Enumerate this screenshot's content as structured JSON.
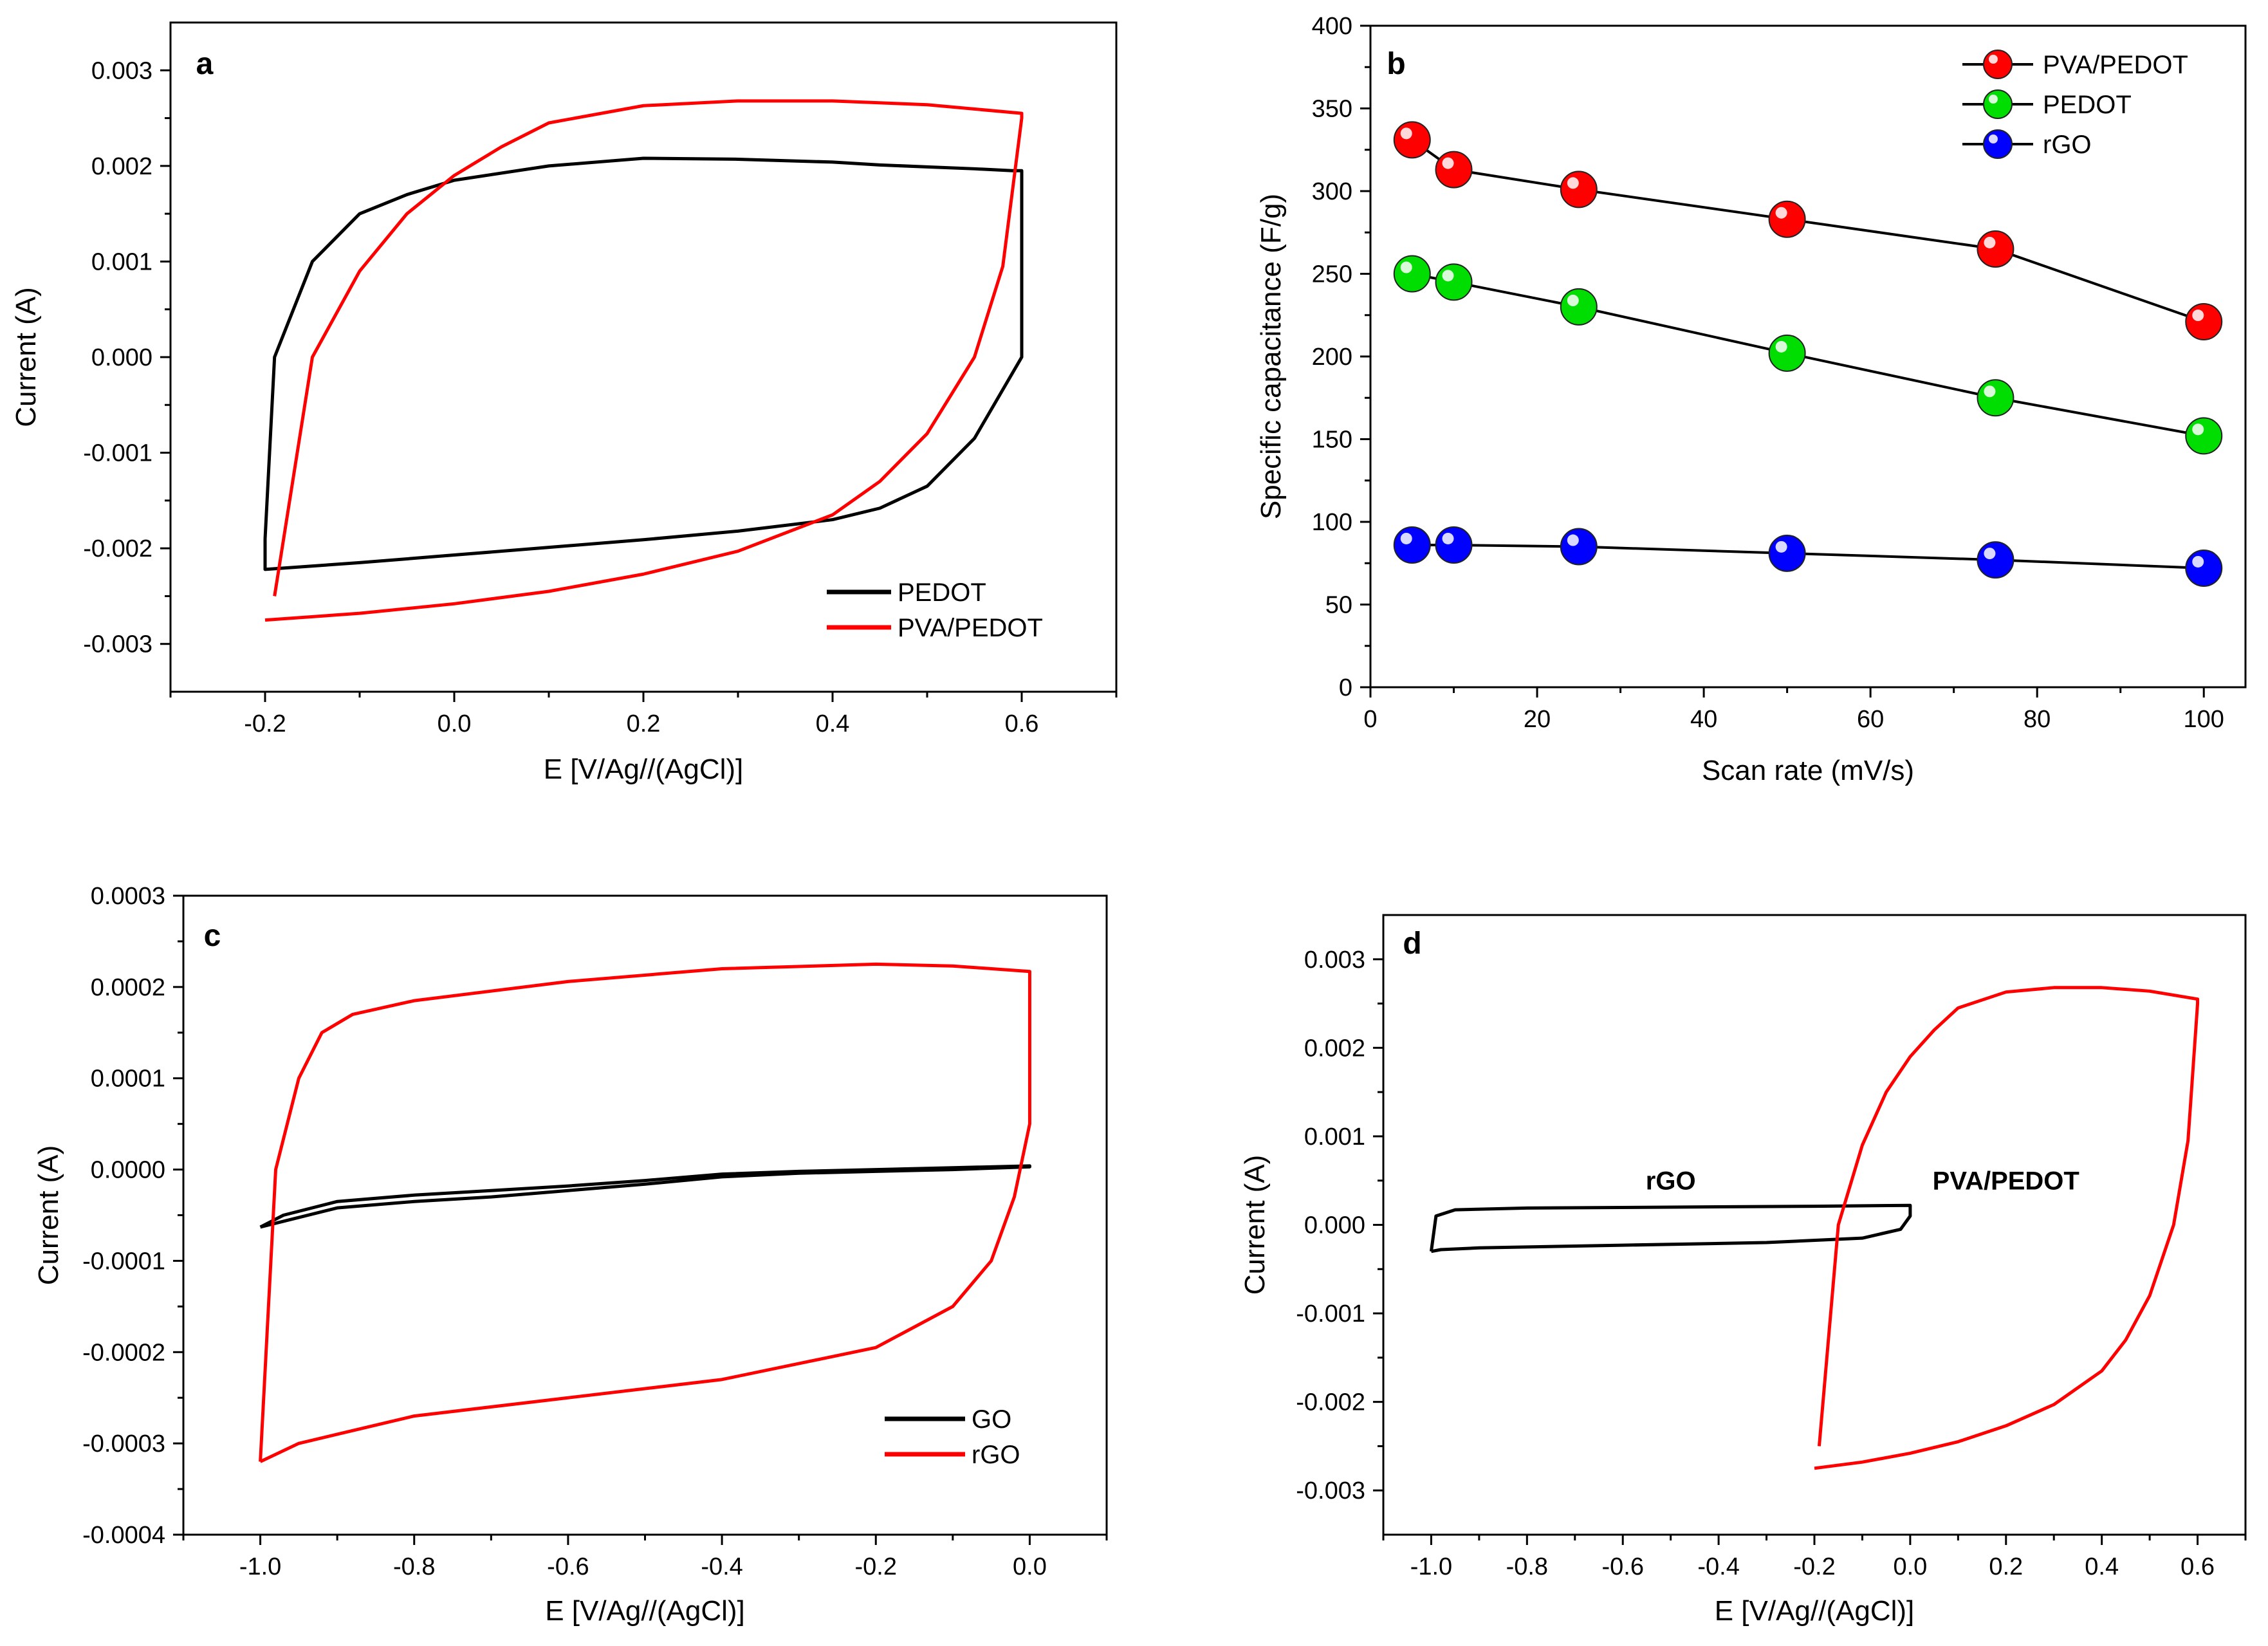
{
  "chart_data": [
    {
      "id": "a",
      "type": "line",
      "panel_label": "a",
      "xlabel": "E [V/Ag//(AgCl)]",
      "ylabel": "Current (A)",
      "xlim": [
        -0.3,
        0.7
      ],
      "ylim": [
        -0.0035,
        0.0035
      ],
      "xticks": [
        -0.2,
        0.0,
        0.2,
        0.4,
        0.6
      ],
      "xtick_labels": [
        "-0.2",
        "0.0",
        "0.2",
        "0.4",
        "0.6"
      ],
      "yticks": [
        -0.003,
        -0.002,
        -0.001,
        0.0,
        0.001,
        0.002,
        0.003
      ],
      "ytick_labels": [
        "-0.003",
        "-0.002",
        "-0.001",
        "0.000",
        "0.001",
        "0.002",
        "0.003"
      ],
      "legend_position": "bottom-right",
      "series": [
        {
          "name": "PEDOT",
          "color": "#000000",
          "x": [
            -0.2,
            -0.2,
            -0.1,
            0.0,
            0.1,
            0.2,
            0.3,
            0.4,
            0.45,
            0.5,
            0.55,
            0.6,
            0.6,
            0.59,
            0.57,
            0.55,
            0.5,
            0.45,
            0.4,
            0.3,
            0.2,
            0.1,
            0.0,
            -0.05,
            -0.1,
            -0.15,
            -0.19,
            -0.2
          ],
          "y": [
            -0.0019,
            -0.00222,
            -0.00215,
            -0.00207,
            -0.00199,
            -0.00191,
            -0.00182,
            -0.0017,
            -0.00158,
            -0.00135,
            -0.00085,
            0.0,
            0.00195,
            0.00195,
            0.00196,
            0.00197,
            0.00199,
            0.00201,
            0.00204,
            0.00207,
            0.00208,
            0.002,
            0.00185,
            0.0017,
            0.0015,
            0.001,
            0.0,
            -0.0019
          ]
        },
        {
          "name": "PVA/PEDOT",
          "color": "#ff0000",
          "x": [
            -0.2,
            -0.2,
            -0.1,
            0.0,
            0.1,
            0.2,
            0.3,
            0.4,
            0.45,
            0.5,
            0.55,
            0.58,
            0.6,
            0.6,
            0.5,
            0.4,
            0.3,
            0.2,
            0.1,
            0.05,
            0.0,
            -0.05,
            -0.1,
            -0.15,
            -0.19
          ],
          "y": [
            -0.00275,
            -0.00275,
            -0.00268,
            -0.00258,
            -0.00245,
            -0.00227,
            -0.00203,
            -0.00165,
            -0.0013,
            -0.0008,
            0.0,
            0.00095,
            0.0025,
            0.00255,
            0.00264,
            0.00268,
            0.00268,
            0.00263,
            0.00245,
            0.0022,
            0.0019,
            0.0015,
            0.0009,
            0.0,
            -0.0025
          ]
        }
      ]
    },
    {
      "id": "b",
      "type": "line",
      "panel_label": "b",
      "xlabel": "Scan rate (mV/s)",
      "ylabel": "Specific capacitance (F/g)",
      "xlim": [
        0,
        105
      ],
      "ylim": [
        0,
        400
      ],
      "xticks": [
        0,
        20,
        40,
        60,
        80,
        100
      ],
      "xtick_labels": [
        "0",
        "20",
        "40",
        "60",
        "80",
        "100"
      ],
      "yticks": [
        0,
        50,
        100,
        150,
        200,
        250,
        300,
        350,
        400
      ],
      "ytick_labels": [
        "0",
        "50",
        "100",
        "150",
        "200",
        "250",
        "300",
        "350",
        "400"
      ],
      "legend_position": "top-right",
      "categories": [
        5,
        10,
        25,
        50,
        75,
        100
      ],
      "series": [
        {
          "name": "PVA/PEDOT",
          "color": "#ff0000",
          "values": [
            331,
            313,
            301,
            283,
            265,
            221
          ]
        },
        {
          "name": "PEDOT",
          "color": "#00dd00",
          "values": [
            250,
            245,
            230,
            202,
            175,
            152
          ]
        },
        {
          "name": "rGO",
          "color": "#0000ff",
          "values": [
            86,
            86,
            85,
            81,
            77,
            72
          ]
        }
      ]
    },
    {
      "id": "c",
      "type": "line",
      "panel_label": "c",
      "xlabel": "E [V/Ag//(AgCl)]",
      "ylabel": "Current (A)",
      "xlim": [
        -1.1,
        0.1
      ],
      "ylim": [
        -0.0004,
        0.0003
      ],
      "xticks": [
        -1.0,
        -0.8,
        -0.6,
        -0.4,
        -0.2,
        0.0
      ],
      "xtick_labels": [
        "-1.0",
        "-0.8",
        "-0.6",
        "-0.4",
        "-0.2",
        "0.0"
      ],
      "yticks": [
        -0.0004,
        -0.0003,
        -0.0002,
        -0.0001,
        0.0,
        0.0001,
        0.0002,
        0.0003
      ],
      "ytick_labels": [
        "-0.0004",
        "-0.0003",
        "-0.0002",
        "-0.0001",
        "0.0000",
        "0.0001",
        "0.0002",
        "0.0003"
      ],
      "legend_position": "bottom-right",
      "series": [
        {
          "name": "GO",
          "color": "#000000",
          "x": [
            -1.0,
            -0.9,
            -0.8,
            -0.7,
            -0.6,
            -0.5,
            -0.4,
            -0.3,
            -0.2,
            -0.1,
            0.0,
            0.0,
            -0.1,
            -0.2,
            -0.3,
            -0.4,
            -0.5,
            -0.6,
            -0.7,
            -0.8,
            -0.9,
            -0.97,
            -1.0
          ],
          "y": [
            -6.3e-05,
            -4.2e-05,
            -3.5e-05,
            -3e-05,
            -2.3e-05,
            -1.6e-05,
            -8e-06,
            -4e-06,
            -2e-06,
            0.0,
            3e-06,
            4e-06,
            2e-06,
            0.0,
            -2e-06,
            -5e-06,
            -1.2e-05,
            -1.8e-05,
            -2.3e-05,
            -2.8e-05,
            -3.5e-05,
            -5e-05,
            -6.3e-05
          ]
        },
        {
          "name": "rGO",
          "color": "#ff0000",
          "x": [
            -1.0,
            -1.0,
            -0.95,
            -0.9,
            -0.8,
            -0.6,
            -0.4,
            -0.2,
            -0.1,
            -0.05,
            -0.02,
            0.0,
            0.0,
            -0.1,
            -0.2,
            -0.4,
            -0.6,
            -0.8,
            -0.88,
            -0.92,
            -0.95,
            -0.98,
            -1.0
          ],
          "y": [
            -0.00032,
            -0.00032,
            -0.0003,
            -0.00029,
            -0.00027,
            -0.00025,
            -0.00023,
            -0.000195,
            -0.00015,
            -0.0001,
            -3e-05,
            5e-05,
            0.000217,
            0.000223,
            0.000225,
            0.00022,
            0.000206,
            0.000185,
            0.00017,
            0.00015,
            0.0001,
            0.0,
            -0.00032
          ]
        }
      ]
    },
    {
      "id": "d",
      "type": "line",
      "panel_label": "d",
      "xlabel": "E [V/Ag//(AgCl)]",
      "ylabel": "Current (A)",
      "xlim": [
        -1.1,
        0.7
      ],
      "ylim": [
        -0.0035,
        0.0035
      ],
      "xticks": [
        -1.0,
        -0.8,
        -0.6,
        -0.4,
        -0.2,
        0.0,
        0.2,
        0.4,
        0.6
      ],
      "xtick_labels": [
        "-1.0",
        "-0.8",
        "-0.6",
        "-0.4",
        "-0.2",
        "0.0",
        "0.2",
        "0.4",
        "0.6"
      ],
      "yticks": [
        -0.003,
        -0.002,
        -0.001,
        0.0,
        0.001,
        0.002,
        0.003
      ],
      "ytick_labels": [
        "-0.003",
        "-0.002",
        "-0.001",
        "0.000",
        "0.001",
        "0.002",
        "0.003"
      ],
      "annotations": [
        {
          "text": "rGO",
          "x": -0.5,
          "y": 0.0005
        },
        {
          "text": "PVA/PEDOT",
          "x": 0.2,
          "y": 0.0005
        }
      ],
      "series": [
        {
          "name": "rGO",
          "color": "#000000",
          "x": [
            -1.0,
            -0.98,
            -0.9,
            -0.6,
            -0.3,
            -0.1,
            -0.02,
            0.0,
            0.0,
            -0.2,
            -0.5,
            -0.8,
            -0.95,
            -0.99,
            -1.0
          ],
          "y": [
            -0.0003,
            -0.00028,
            -0.00026,
            -0.00023,
            -0.0002,
            -0.00015,
            -5e-05,
            0.0001,
            0.00022,
            0.00021,
            0.0002,
            0.00019,
            0.00017,
            0.0001,
            -0.0003
          ]
        },
        {
          "name": "PVA/PEDOT",
          "color": "#ff0000",
          "x": [
            -0.2,
            -0.2,
            -0.1,
            0.0,
            0.1,
            0.2,
            0.3,
            0.4,
            0.45,
            0.5,
            0.55,
            0.58,
            0.6,
            0.6,
            0.5,
            0.4,
            0.3,
            0.2,
            0.1,
            0.05,
            0.0,
            -0.05,
            -0.1,
            -0.15,
            -0.19
          ],
          "y": [
            -0.00275,
            -0.00275,
            -0.00268,
            -0.00258,
            -0.00245,
            -0.00227,
            -0.00203,
            -0.00165,
            -0.0013,
            -0.0008,
            0.0,
            0.00095,
            0.0025,
            0.00255,
            0.00264,
            0.00268,
            0.00268,
            0.00263,
            0.00245,
            0.0022,
            0.0019,
            0.0015,
            0.0009,
            0.0,
            -0.0025
          ]
        }
      ]
    }
  ]
}
